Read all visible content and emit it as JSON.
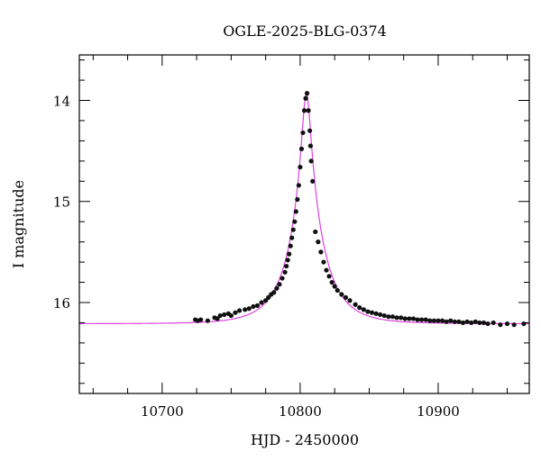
{
  "chart_data": {
    "type": "scatter",
    "title": "OGLE-2025-BLG-0374",
    "xlabel": "HJD - 2450000",
    "ylabel": "I magnitude",
    "xlim": [
      10640,
      10966
    ],
    "ylim": [
      16.9,
      13.55
    ],
    "y_inverted": true,
    "grid": false,
    "x_ticks": [
      10700,
      10800,
      10900
    ],
    "x_tick_labels": [
      "10700",
      "10800",
      "10900"
    ],
    "y_ticks": [
      14,
      15,
      16
    ],
    "y_tick_labels": [
      "14",
      "15",
      "16"
    ],
    "colors": {
      "points": "#111111",
      "model": "#e040e0",
      "axes": "#000000"
    },
    "model": {
      "description_of_curve": "point-lens fit",
      "peak_time": 10804.5,
      "peak_mag": 13.93,
      "baseline_mag": 16.21,
      "x": [
        10640,
        10700,
        10740,
        10770,
        10785,
        10792,
        10796,
        10799,
        10801,
        10803,
        10804.5,
        10806,
        10808,
        10810,
        10814,
        10820,
        10830,
        10845,
        10870,
        10900,
        10966
      ],
      "y": [
        16.21,
        16.17,
        16.12,
        16.02,
        15.79,
        15.5,
        15.18,
        14.8,
        14.47,
        14.12,
        13.93,
        14.2,
        14.65,
        15.05,
        15.5,
        15.8,
        15.98,
        16.07,
        16.14,
        16.17,
        16.2
      ]
    },
    "points": {
      "x": [
        10724,
        10726,
        10728,
        10733,
        10738,
        10740,
        10742,
        10745,
        10748,
        10750,
        10753,
        10756,
        10760,
        10763,
        10766,
        10769,
        10772,
        10775,
        10777,
        10779,
        10781,
        10783,
        10785,
        10787,
        10789,
        10790,
        10791,
        10792,
        10793,
        10794,
        10795,
        10796,
        10797,
        10798,
        10799,
        10800,
        10801,
        10802,
        10803,
        10804,
        10805,
        10806,
        10807,
        10807.5,
        10808,
        10809,
        10811,
        10813,
        10815,
        10817,
        10819,
        10821,
        10823,
        10825,
        10827,
        10830,
        10833,
        10836,
        10840,
        10843,
        10846,
        10849,
        10852,
        10855,
        10858,
        10861,
        10864,
        10867,
        10870,
        10873,
        10876,
        10879,
        10882,
        10885,
        10888,
        10891,
        10894,
        10897,
        10900,
        10903,
        10906,
        10909,
        10912,
        10915,
        10918,
        10921,
        10924,
        10927,
        10930,
        10933,
        10936,
        10940,
        10945,
        10950,
        10955,
        10962
      ],
      "y": [
        16.17,
        16.18,
        16.17,
        16.18,
        16.15,
        16.16,
        16.13,
        16.12,
        16.11,
        16.13,
        16.1,
        16.08,
        16.07,
        16.06,
        16.04,
        16.03,
        16.0,
        15.98,
        15.95,
        15.92,
        15.9,
        15.86,
        15.82,
        15.76,
        15.7,
        15.64,
        15.58,
        15.52,
        15.44,
        15.36,
        15.28,
        15.2,
        15.1,
        14.98,
        14.84,
        14.66,
        14.48,
        14.32,
        14.1,
        13.98,
        13.93,
        14.1,
        14.3,
        14.45,
        14.6,
        14.8,
        15.3,
        15.4,
        15.5,
        15.6,
        15.68,
        15.74,
        15.8,
        15.84,
        15.88,
        15.92,
        15.95,
        15.98,
        16.02,
        16.05,
        16.07,
        16.09,
        16.1,
        16.11,
        16.12,
        16.13,
        16.14,
        16.14,
        16.15,
        16.15,
        16.16,
        16.16,
        16.16,
        16.17,
        16.17,
        16.17,
        16.18,
        16.18,
        16.18,
        16.18,
        16.19,
        16.18,
        16.19,
        16.19,
        16.2,
        16.19,
        16.2,
        16.19,
        16.2,
        16.2,
        16.21,
        16.2,
        16.22,
        16.21,
        16.22,
        16.21
      ]
    }
  }
}
